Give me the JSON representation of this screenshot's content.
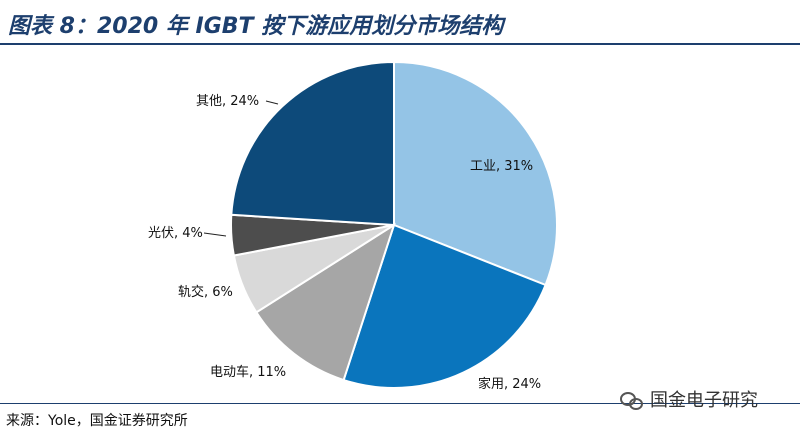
{
  "header": {
    "title": "图表 8：2020 年 IGBT 按下游应用划分市场结构"
  },
  "chart_data": {
    "type": "pie",
    "title": "图表 8：2020 年 IGBT 按下游应用划分市场结构",
    "slices": [
      {
        "label": "工业",
        "value": 31,
        "display": "工业, 31%",
        "color": "#94c4e6"
      },
      {
        "label": "家用",
        "value": 24,
        "display": "家用, 24%",
        "color": "#0a75bd"
      },
      {
        "label": "电动车",
        "value": 11,
        "display": "电动车, 11%",
        "color": "#a6a6a6"
      },
      {
        "label": "轨交",
        "value": 6,
        "display": "轨交, 6%",
        "color": "#d9d9d9"
      },
      {
        "label": "光伏",
        "value": 4,
        "display": "光伏, 4%",
        "color": "#4d4d4d"
      },
      {
        "label": "其他",
        "value": 24,
        "display": "其他, 24%",
        "color": "#0d4a7a"
      }
    ],
    "start_angle_deg": 0,
    "direction": "clockwise"
  },
  "footer": {
    "source": "来源：Yole，国金证券研究所",
    "watermark": "国金电子研究"
  }
}
